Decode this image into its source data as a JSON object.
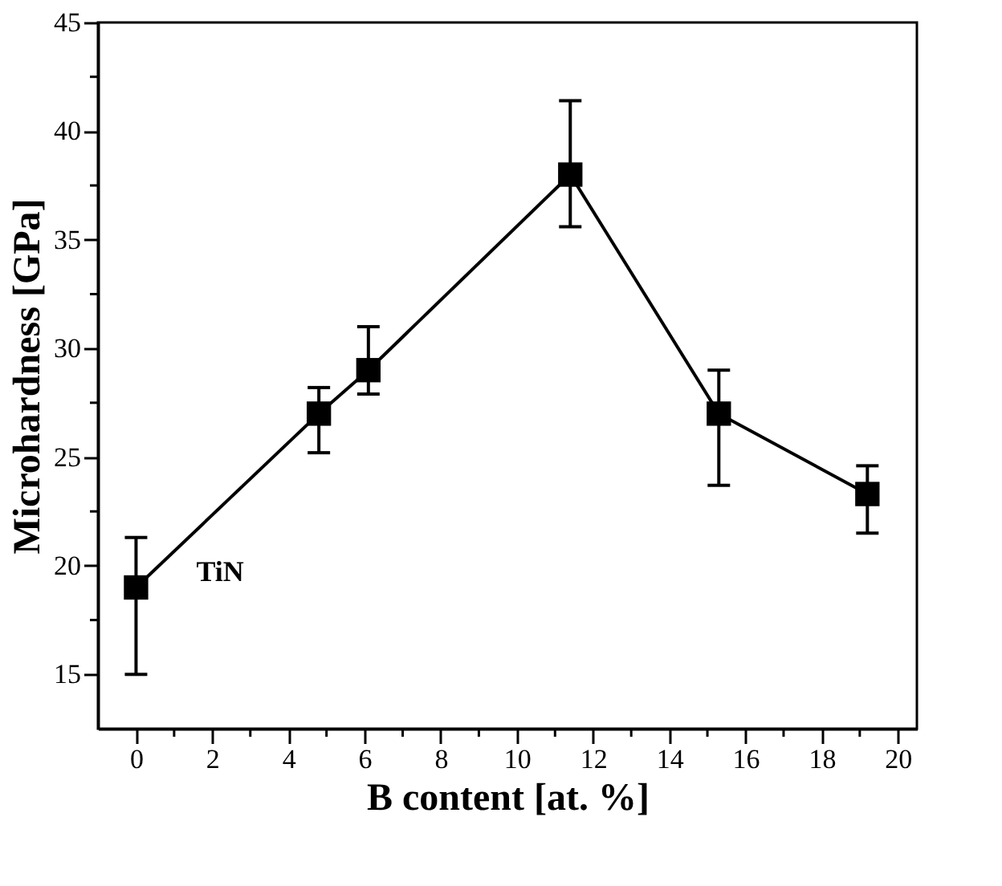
{
  "chart_data": {
    "type": "line",
    "xlabel": "B content [at. %]",
    "ylabel": "Microhardness [GPa]",
    "x": [
      0,
      4.8,
      6.1,
      11.4,
      15.3,
      19.2
    ],
    "series": [
      {
        "color": "#000000",
        "values": [
          19,
          27,
          29,
          38,
          27,
          23.3
        ],
        "errors": [
          [
            15,
            21.3
          ],
          [
            25.2,
            28.2
          ],
          [
            27.9,
            31
          ],
          [
            35.6,
            41.4
          ],
          [
            23.7,
            29
          ],
          [
            21.5,
            24.6
          ]
        ]
      }
    ],
    "xlim": [
      -1,
      20.5
    ],
    "ylim": [
      12.5,
      45
    ],
    "xticks": [
      0,
      {
        "value": 1,
        "label": null
      },
      2,
      {
        "value": 3,
        "label": null
      },
      4,
      {
        "value": 5,
        "label": null
      },
      6,
      {
        "value": 7,
        "label": null
      },
      8,
      {
        "value": 9,
        "label": null
      },
      10,
      {
        "value": 11,
        "label": null
      },
      12,
      {
        "value": 13,
        "label": null
      },
      14,
      {
        "value": 15,
        "label": null
      },
      16,
      {
        "value": 17,
        "label": null
      },
      18,
      {
        "value": 19,
        "label": null
      },
      20
    ],
    "yticks": [
      15,
      {
        "value": 17.5,
        "label": null
      },
      20,
      {
        "value": 22.5,
        "label": null
      },
      25,
      {
        "value": 27.5,
        "label": null
      },
      30,
      {
        "value": 32.5,
        "label": null
      },
      35,
      {
        "value": 37.5,
        "label": null
      },
      40,
      {
        "value": 42.5,
        "label": null
      },
      45
    ],
    "annotations": [
      "TiN"
    ],
    "marker": "square",
    "line_style": "solid",
    "grid": false
  }
}
